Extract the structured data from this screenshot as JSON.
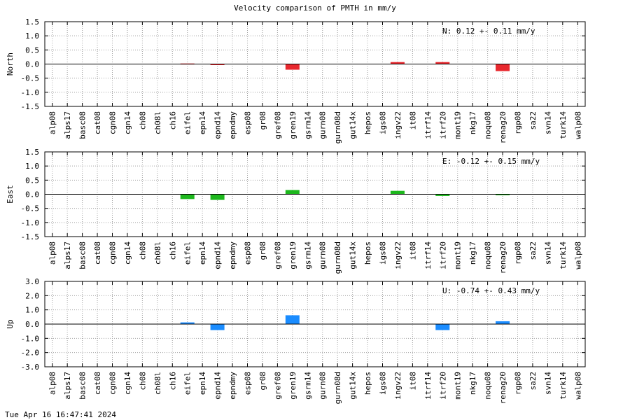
{
  "title": "Velocity comparison of PMTH in mm/y",
  "footer": "Tue Apr 16 16:47:41 2024",
  "chart_data": [
    {
      "type": "bar",
      "ylabel": "North",
      "annotation": "N:   0.12 +-  0.11 mm/y",
      "ylim": [
        -1.5,
        1.5
      ],
      "yticks": [
        -1.5,
        -1.0,
        -0.5,
        0.0,
        0.5,
        1.0,
        1.5
      ],
      "ytick_labels": [
        "-1.5",
        "-1.0",
        "-0.5",
        "0.0",
        "0.5",
        "1.0",
        "1.5"
      ],
      "color": "#e8282e",
      "grid": true,
      "categories": [
        "alp08",
        "alps17",
        "basc08",
        "cat08",
        "cgn08",
        "cgn14",
        "ch08",
        "ch08l",
        "ch16",
        "eifel",
        "epn14",
        "epnd14",
        "epndmy",
        "esp08",
        "gr08",
        "gref08",
        "gren19",
        "gsrm14",
        "gurn08",
        "gurn08d",
        "gut14x",
        "hepos",
        "igs08",
        "ingv22",
        "it08",
        "itrf14",
        "itrf20",
        "mont19",
        "nkg17",
        "noqu08",
        "renag20",
        "rgp08",
        "sa22",
        "svn14",
        "turk14",
        "walp08"
      ],
      "values": [
        0,
        0,
        0,
        0,
        0,
        0,
        0,
        0,
        0,
        0.02,
        0,
        -0.03,
        0,
        0,
        0,
        0,
        -0.2,
        0,
        0,
        0,
        0,
        0,
        0,
        0.07,
        0,
        0,
        0.07,
        0,
        0,
        0,
        -0.25,
        0,
        0,
        0,
        0,
        0
      ]
    },
    {
      "type": "bar",
      "ylabel": "East",
      "annotation": "E:  -0.12 +-  0.15 mm/y",
      "ylim": [
        -1.5,
        1.5
      ],
      "yticks": [
        -1.5,
        -1.0,
        -0.5,
        0.0,
        0.5,
        1.0,
        1.5
      ],
      "ytick_labels": [
        "-1.5",
        "-1.0",
        "-0.5",
        "0.0",
        "0.5",
        "1.0",
        "1.5"
      ],
      "color": "#1db81d",
      "grid": true,
      "categories": [
        "alp08",
        "alps17",
        "basc08",
        "cat08",
        "cgn08",
        "cgn14",
        "ch08",
        "ch08l",
        "ch16",
        "eifel",
        "epn14",
        "epnd14",
        "epndmy",
        "esp08",
        "gr08",
        "gref08",
        "gren19",
        "gsrm14",
        "gurn08",
        "gurn08d",
        "gut14x",
        "hepos",
        "igs08",
        "ingv22",
        "it08",
        "itrf14",
        "itrf20",
        "mont19",
        "nkg17",
        "noqu08",
        "renag20",
        "rgp08",
        "sa22",
        "svn14",
        "turk14",
        "walp08"
      ],
      "values": [
        0,
        0,
        0,
        0,
        0,
        0,
        0,
        0,
        0,
        -0.17,
        0,
        -0.2,
        0,
        0,
        0,
        0,
        0.15,
        0,
        0,
        0,
        0,
        0,
        0,
        0.12,
        0,
        0,
        -0.06,
        0,
        0,
        0,
        -0.02,
        0,
        0,
        0,
        0,
        0
      ]
    },
    {
      "type": "bar",
      "ylabel": "Up",
      "annotation": "U:  -0.74 +-  0.43 mm/y",
      "ylim": [
        -3.0,
        3.0
      ],
      "yticks": [
        -3.0,
        -2.0,
        -1.0,
        0.0,
        1.0,
        2.0,
        3.0
      ],
      "ytick_labels": [
        "-3.0",
        "-2.0",
        "-1.0",
        "0.0",
        "1.0",
        "2.0",
        "3.0"
      ],
      "color": "#1a8cff",
      "grid": true,
      "categories": [
        "alp08",
        "alps17",
        "basc08",
        "cat08",
        "cgn08",
        "cgn14",
        "ch08",
        "ch08l",
        "ch16",
        "eifel",
        "epn14",
        "epnd14",
        "epndmy",
        "esp08",
        "gr08",
        "gref08",
        "gren19",
        "gsrm14",
        "gurn08",
        "gurn08d",
        "gut14x",
        "hepos",
        "igs08",
        "ingv22",
        "it08",
        "itrf14",
        "itrf20",
        "mont19",
        "nkg17",
        "noqu08",
        "renag20",
        "rgp08",
        "sa22",
        "svn14",
        "turk14",
        "walp08"
      ],
      "values": [
        0,
        0,
        0,
        0,
        0,
        0,
        0,
        0,
        0,
        0.12,
        0,
        -0.42,
        0,
        0,
        0,
        0,
        0.62,
        0,
        0,
        0,
        0,
        0,
        0,
        0,
        0,
        0,
        -0.42,
        0,
        0,
        0,
        0.2,
        0,
        0,
        0,
        0,
        0
      ]
    }
  ]
}
